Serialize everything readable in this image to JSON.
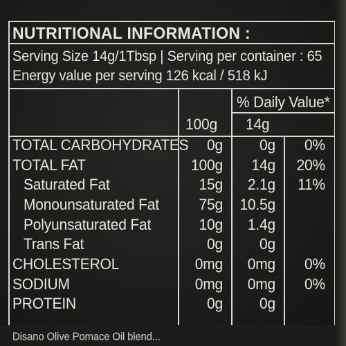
{
  "panel": {
    "title": "NUTRITIONAL INFORMATION :",
    "serving_line": "Serving Size 14g/1Tbsp | Serving per container : 65",
    "energy_line": "Energy value per serving 126 kcal / 518 kJ",
    "daily_value_header": "% Daily Value*",
    "col_100g": "100g",
    "col_14g": "14g"
  },
  "rows": [
    {
      "label": "TOTAL CARBOHYDRATES",
      "v100": "0g",
      "v14": "0g",
      "dv": "0%"
    },
    {
      "label": "TOTAL FAT",
      "v100": "100g",
      "v14": "14g",
      "dv": "20%"
    },
    {
      "label": "Saturated Fat",
      "v100": "15g",
      "v14": "2.1g",
      "dv": "11%"
    },
    {
      "label": "Monounsaturated Fat",
      "v100": "75g",
      "v14": "10.5g",
      "dv": ""
    },
    {
      "label": "Polyunsaturated Fat",
      "v100": "10g",
      "v14": "1.4g",
      "dv": ""
    },
    {
      "label": "Trans Fat",
      "v100": "0g",
      "v14": "0g",
      "dv": ""
    },
    {
      "label": "CHOLESTEROL",
      "v100": "0mg",
      "v14": "0mg",
      "dv": "0%"
    },
    {
      "label": "SODIUM",
      "v100": "0mg",
      "v14": "0mg",
      "dv": "0%"
    },
    {
      "label": "PROTEIN",
      "v100": "0g",
      "v14": "0g",
      "dv": ""
    }
  ],
  "footer_partial": "Disano Olive Pomace Oil blend..."
}
